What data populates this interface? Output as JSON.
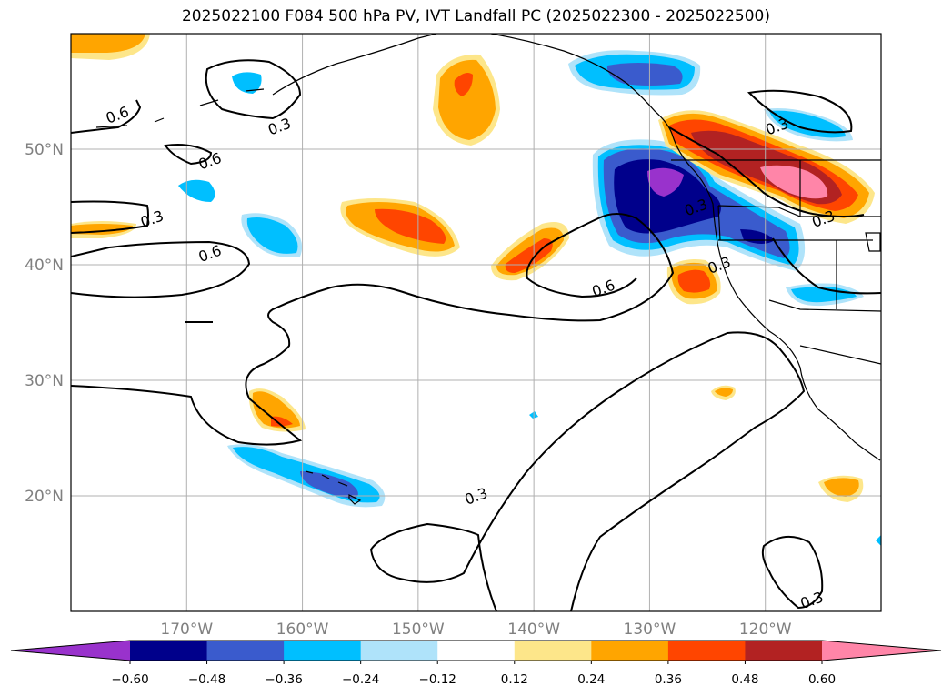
{
  "title": "2025022100 F084 500 hPa PV, IVT Landfall PC (2025022300 - 2025022500)",
  "chart_data": {
    "type": "map-contour",
    "title": "2025022100 F084 500 hPa PV, IVT Landfall PC (2025022300 - 2025022500)",
    "xlim": [
      -180,
      -110
    ],
    "ylim": [
      10,
      60
    ],
    "grid": true,
    "x_ticks": [
      -170,
      -160,
      -150,
      -140,
      -130,
      -120
    ],
    "x_tick_labels": [
      "170°W",
      "160°W",
      "150°W",
      "140°W",
      "130°W",
      "120°W"
    ],
    "y_ticks": [
      20,
      30,
      40,
      50
    ],
    "y_tick_labels": [
      "20°N",
      "30°N",
      "40°N",
      "50°N"
    ],
    "colorbar": {
      "levels": [
        -0.6,
        -0.48,
        -0.36,
        -0.24,
        -0.12,
        0.12,
        0.24,
        0.36,
        0.48,
        0.6
      ],
      "level_labels": [
        "−0.60",
        "−0.48",
        "−0.36",
        "−0.24",
        "−0.12",
        "0.12",
        "0.24",
        "0.36",
        "0.48",
        "0.60"
      ],
      "colors": [
        "#9932cc",
        "#00008b",
        "#3a5bcd",
        "#00bfff",
        "#afe3fa",
        "#ffffff",
        "#fde68a",
        "#ffa500",
        "#ff4500",
        "#b22222",
        "#ff85a8"
      ],
      "extend": "both"
    },
    "contour_levels": [
      0.3,
      0.6
    ],
    "contour_labels": [
      {
        "text": "0.6",
        "lon": -176,
        "lat": 53
      },
      {
        "text": "0.3",
        "lon": -162,
        "lat": 52
      },
      {
        "text": "0.6",
        "lon": -168,
        "lat": 49
      },
      {
        "text": "0.3",
        "lon": -173,
        "lat": 44
      },
      {
        "text": "0.6",
        "lon": -168,
        "lat": 41
      },
      {
        "text": "0.3",
        "lon": -126,
        "lat": 45
      },
      {
        "text": "0.3",
        "lon": -115,
        "lat": 44
      },
      {
        "text": "0.3",
        "lon": -119,
        "lat": 52
      },
      {
        "text": "0.3",
        "lon": -124,
        "lat": 40
      },
      {
        "text": "0.6",
        "lon": -134,
        "lat": 38
      },
      {
        "text": "0.3",
        "lon": -145,
        "lat": 20
      },
      {
        "text": "0.3",
        "lon": -116,
        "lat": 11
      }
    ]
  }
}
